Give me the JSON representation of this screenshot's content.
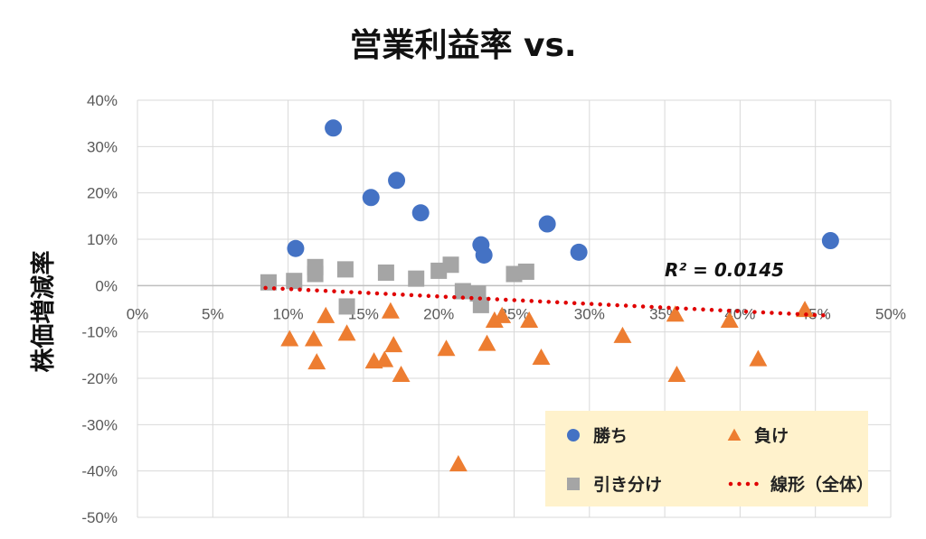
{
  "chart_data": {
    "type": "scatter",
    "title": "営業利益率 vs.",
    "xlabel": "",
    "ylabel": "株価増減率",
    "xlim": [
      0,
      0.5
    ],
    "ylim": [
      -0.5,
      0.4
    ],
    "x_ticks": [
      "0%",
      "5%",
      "10%",
      "15%",
      "20%",
      "25%",
      "30%",
      "35%",
      "40%",
      "45%",
      "50%"
    ],
    "y_ticks": [
      "40%",
      "30%",
      "20%",
      "10%",
      "0%",
      "-10%",
      "-20%",
      "-30%",
      "-40%",
      "-50%"
    ],
    "grid": true,
    "legend_position": "bottom-right",
    "series": [
      {
        "name": "勝ち",
        "marker": "circle",
        "color": "#4472C4",
        "points": [
          [
            0.105,
            0.08
          ],
          [
            0.13,
            0.34
          ],
          [
            0.155,
            0.19
          ],
          [
            0.172,
            0.227
          ],
          [
            0.188,
            0.157
          ],
          [
            0.228,
            0.088
          ],
          [
            0.23,
            0.066
          ],
          [
            0.272,
            0.133
          ],
          [
            0.293,
            0.072
          ],
          [
            0.46,
            0.097
          ]
        ]
      },
      {
        "name": "負け",
        "marker": "triangle",
        "color": "#ED7D31",
        "points": [
          [
            0.101,
            -0.115
          ],
          [
            0.117,
            -0.115
          ],
          [
            0.119,
            -0.165
          ],
          [
            0.125,
            -0.065
          ],
          [
            0.139,
            -0.103
          ],
          [
            0.157,
            -0.163
          ],
          [
            0.164,
            -0.16
          ],
          [
            0.168,
            -0.055
          ],
          [
            0.17,
            -0.128
          ],
          [
            0.175,
            -0.192
          ],
          [
            0.205,
            -0.136
          ],
          [
            0.213,
            -0.385
          ],
          [
            0.232,
            -0.125
          ],
          [
            0.237,
            -0.075
          ],
          [
            0.242,
            -0.065
          ],
          [
            0.26,
            -0.075
          ],
          [
            0.268,
            -0.155
          ],
          [
            0.322,
            -0.108
          ],
          [
            0.357,
            -0.062
          ],
          [
            0.358,
            -0.192
          ],
          [
            0.393,
            -0.075
          ],
          [
            0.412,
            -0.158
          ],
          [
            0.443,
            -0.052
          ]
        ]
      },
      {
        "name": "引き分け",
        "marker": "square",
        "color": "#A5A5A5",
        "points": [
          [
            0.087,
            0.007
          ],
          [
            0.104,
            0.01
          ],
          [
            0.118,
            0.04
          ],
          [
            0.118,
            0.025
          ],
          [
            0.138,
            0.035
          ],
          [
            0.139,
            -0.045
          ],
          [
            0.165,
            0.028
          ],
          [
            0.185,
            0.015
          ],
          [
            0.2,
            0.032
          ],
          [
            0.208,
            0.045
          ],
          [
            0.216,
            -0.012
          ],
          [
            0.226,
            -0.017
          ],
          [
            0.228,
            -0.042
          ],
          [
            0.25,
            0.025
          ],
          [
            0.258,
            0.03
          ]
        ]
      }
    ],
    "trendline": {
      "name": "線形（全体）",
      "type": "linear",
      "style": "dotted",
      "color": "#E00000",
      "x_range": [
        0.085,
        0.46
      ],
      "y_start": -0.005,
      "y_end": -0.065,
      "r_squared_label": "R² = 0.0145"
    }
  }
}
